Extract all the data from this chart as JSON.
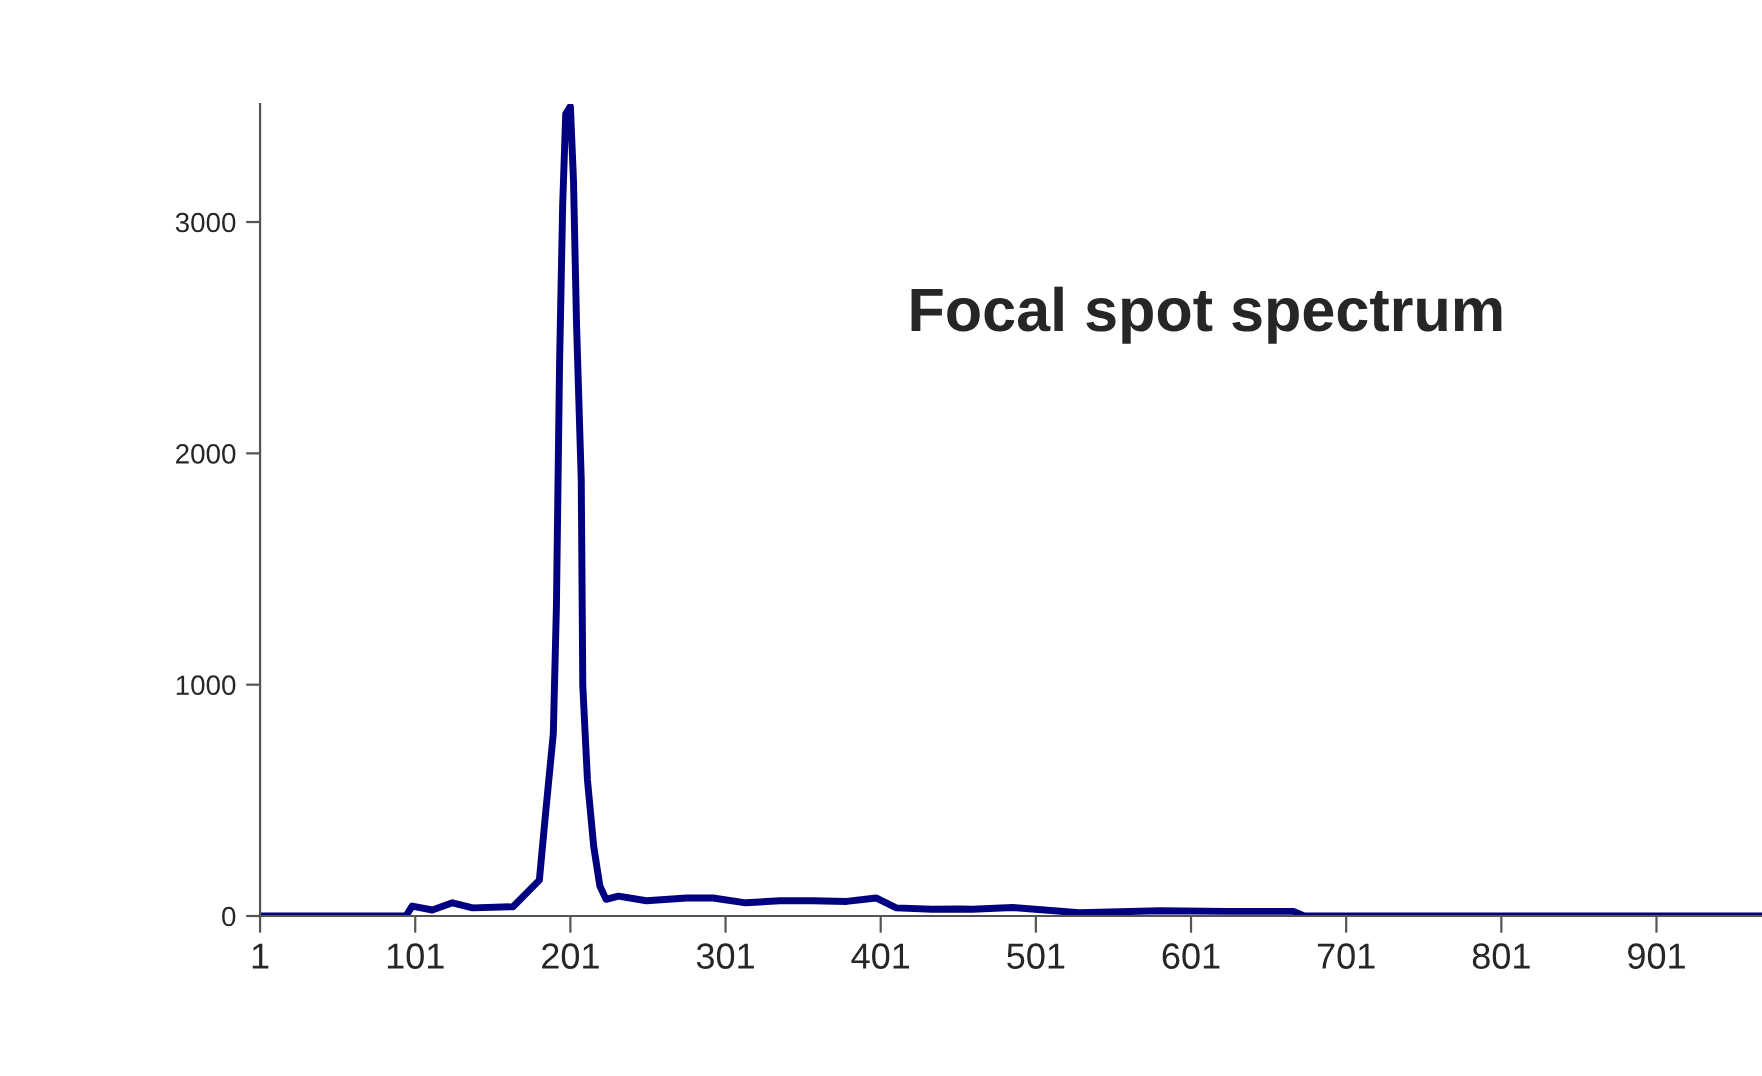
{
  "chart_data": {
    "type": "line",
    "title": "Focal spot spectrum",
    "x": [
      1,
      95,
      99,
      112,
      125,
      138,
      164,
      181,
      185,
      190,
      192,
      194,
      196,
      198,
      201,
      203,
      205,
      208,
      209,
      212,
      216,
      220,
      224,
      232,
      250,
      276,
      293,
      314,
      336,
      357,
      379,
      398,
      411,
      434,
      452,
      460,
      486,
      529,
      581,
      624,
      667,
      674,
      969
    ],
    "series": [
      {
        "color": "#000080",
        "values": [
          0,
          0,
          43,
          26,
          57,
          35,
          40,
          155,
          443,
          789,
          1340,
          2377,
          3068,
          3468,
          3500,
          3180,
          2550,
          1884,
          994,
          588,
          302,
          130,
          72,
          86,
          66,
          78,
          78,
          57,
          66,
          66,
          63,
          78,
          35,
          29,
          30,
          29,
          37,
          14,
          23,
          20,
          20,
          0,
          0
        ]
      }
    ],
    "xlim": [
      1,
      969
    ],
    "ylim": [
      0,
      3510
    ],
    "xticks": [
      1,
      101,
      201,
      301,
      401,
      501,
      601,
      701,
      801,
      901
    ],
    "yticks": [
      0,
      1000,
      2000,
      3000
    ],
    "grid": false,
    "marker": "none",
    "line_style": "solid",
    "legend": false
  }
}
